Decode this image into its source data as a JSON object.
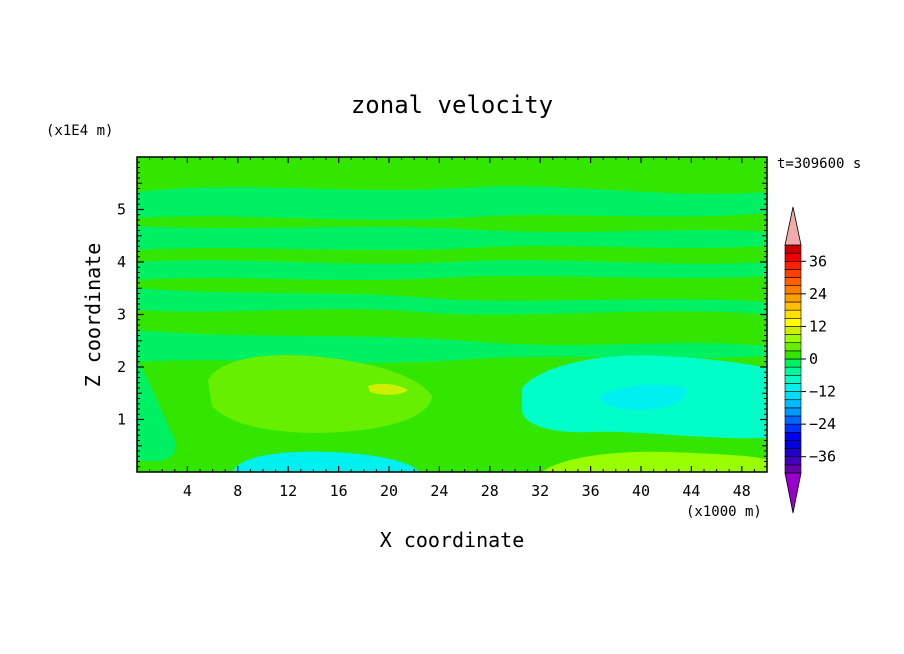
{
  "chart_data": {
    "type": "heatmap",
    "title": "zonal velocity",
    "xlabel": "X coordinate",
    "ylabel": "Z coordinate",
    "x_unit": "(x1000 m)",
    "y_unit": "(x1E4 m)",
    "time_label": "t=309600 s",
    "xlim": [
      0,
      50
    ],
    "ylim": [
      0,
      6
    ],
    "x_ticks": [
      4,
      8,
      12,
      16,
      20,
      24,
      28,
      32,
      36,
      40,
      44,
      48
    ],
    "x_tick_labels": [
      "4",
      "8",
      "12",
      "16",
      "20",
      "24",
      "28",
      "32",
      "36",
      "40",
      "44",
      "48"
    ],
    "y_ticks": [
      1,
      2,
      3,
      4,
      5
    ],
    "y_tick_labels": [
      "1",
      "2",
      "3",
      "4",
      "5"
    ],
    "colorbar": {
      "levels": [
        -42,
        -39,
        -36,
        -33,
        -30,
        -27,
        -24,
        -21,
        -18,
        -15,
        -12,
        -9,
        -6,
        -3,
        0,
        3,
        6,
        9,
        12,
        15,
        18,
        21,
        24,
        27,
        30,
        33,
        36,
        39,
        42
      ],
      "colors": [
        "#6600aa",
        "#4400bb",
        "#2200cc",
        "#0000dd",
        "#0000f5",
        "#0033ff",
        "#0066ff",
        "#0099ff",
        "#00bbff",
        "#00ddff",
        "#00f0f0",
        "#00ffc8",
        "#00fa96",
        "#00f064",
        "#33e600",
        "#66f000",
        "#99ff00",
        "#ccf000",
        "#ffff00",
        "#ffe000",
        "#ffc000",
        "#ffa000",
        "#ff8000",
        "#ff6000",
        "#ff4000",
        "#ff2000",
        "#f00000",
        "#cc0000"
      ],
      "under_color": "#9900cc",
      "over_color": "#f4aaaa",
      "tick_values": [
        36,
        24,
        12,
        0,
        -12,
        -24,
        -36
      ],
      "tick_labels": [
        "36",
        "24",
        "12",
        "0",
        "−12",
        "−24",
        "−36"
      ]
    },
    "field": {
      "description_levels": "zonal velocity values in m/s by region",
      "background_value": 1,
      "regions": [
        {
          "x": [
            0,
            50
          ],
          "z": [
            0,
            6
          ],
          "value": 1.5
        },
        {
          "x": [
            0,
            50
          ],
          "z": [
            5.05,
            5.55
          ],
          "value": -1.5
        },
        {
          "x": [
            0,
            50
          ],
          "z": [
            4.3,
            4.95
          ],
          "value": -1.5
        },
        {
          "x": [
            0,
            50
          ],
          "z": [
            3.95,
            4.2
          ],
          "value": -1.5
        },
        {
          "x": [
            0,
            50
          ],
          "z": [
            3.0,
            3.45
          ],
          "value": -1.5
        },
        {
          "x": [
            0,
            50
          ],
          "z": [
            2.3,
            2.85
          ],
          "value": -1.5
        },
        {
          "x": [
            5,
            24
          ],
          "z": [
            0.8,
            2.2
          ],
          "value": 4.5
        },
        {
          "x": [
            19,
            22
          ],
          "z": [
            1.45,
            1.65
          ],
          "value": 9
        },
        {
          "x": [
            30,
            50
          ],
          "z": [
            0.75,
            2.3
          ],
          "value": -4.5
        },
        {
          "x": [
            36,
            45
          ],
          "z": [
            1.2,
            1.6
          ],
          "value": -7.5
        },
        {
          "x": [
            5,
            22
          ],
          "z": [
            0,
            0.35
          ],
          "value": -4.5
        },
        {
          "x": [
            34,
            50
          ],
          "z": [
            0,
            0.35
          ],
          "value": 7.5
        }
      ]
    }
  }
}
